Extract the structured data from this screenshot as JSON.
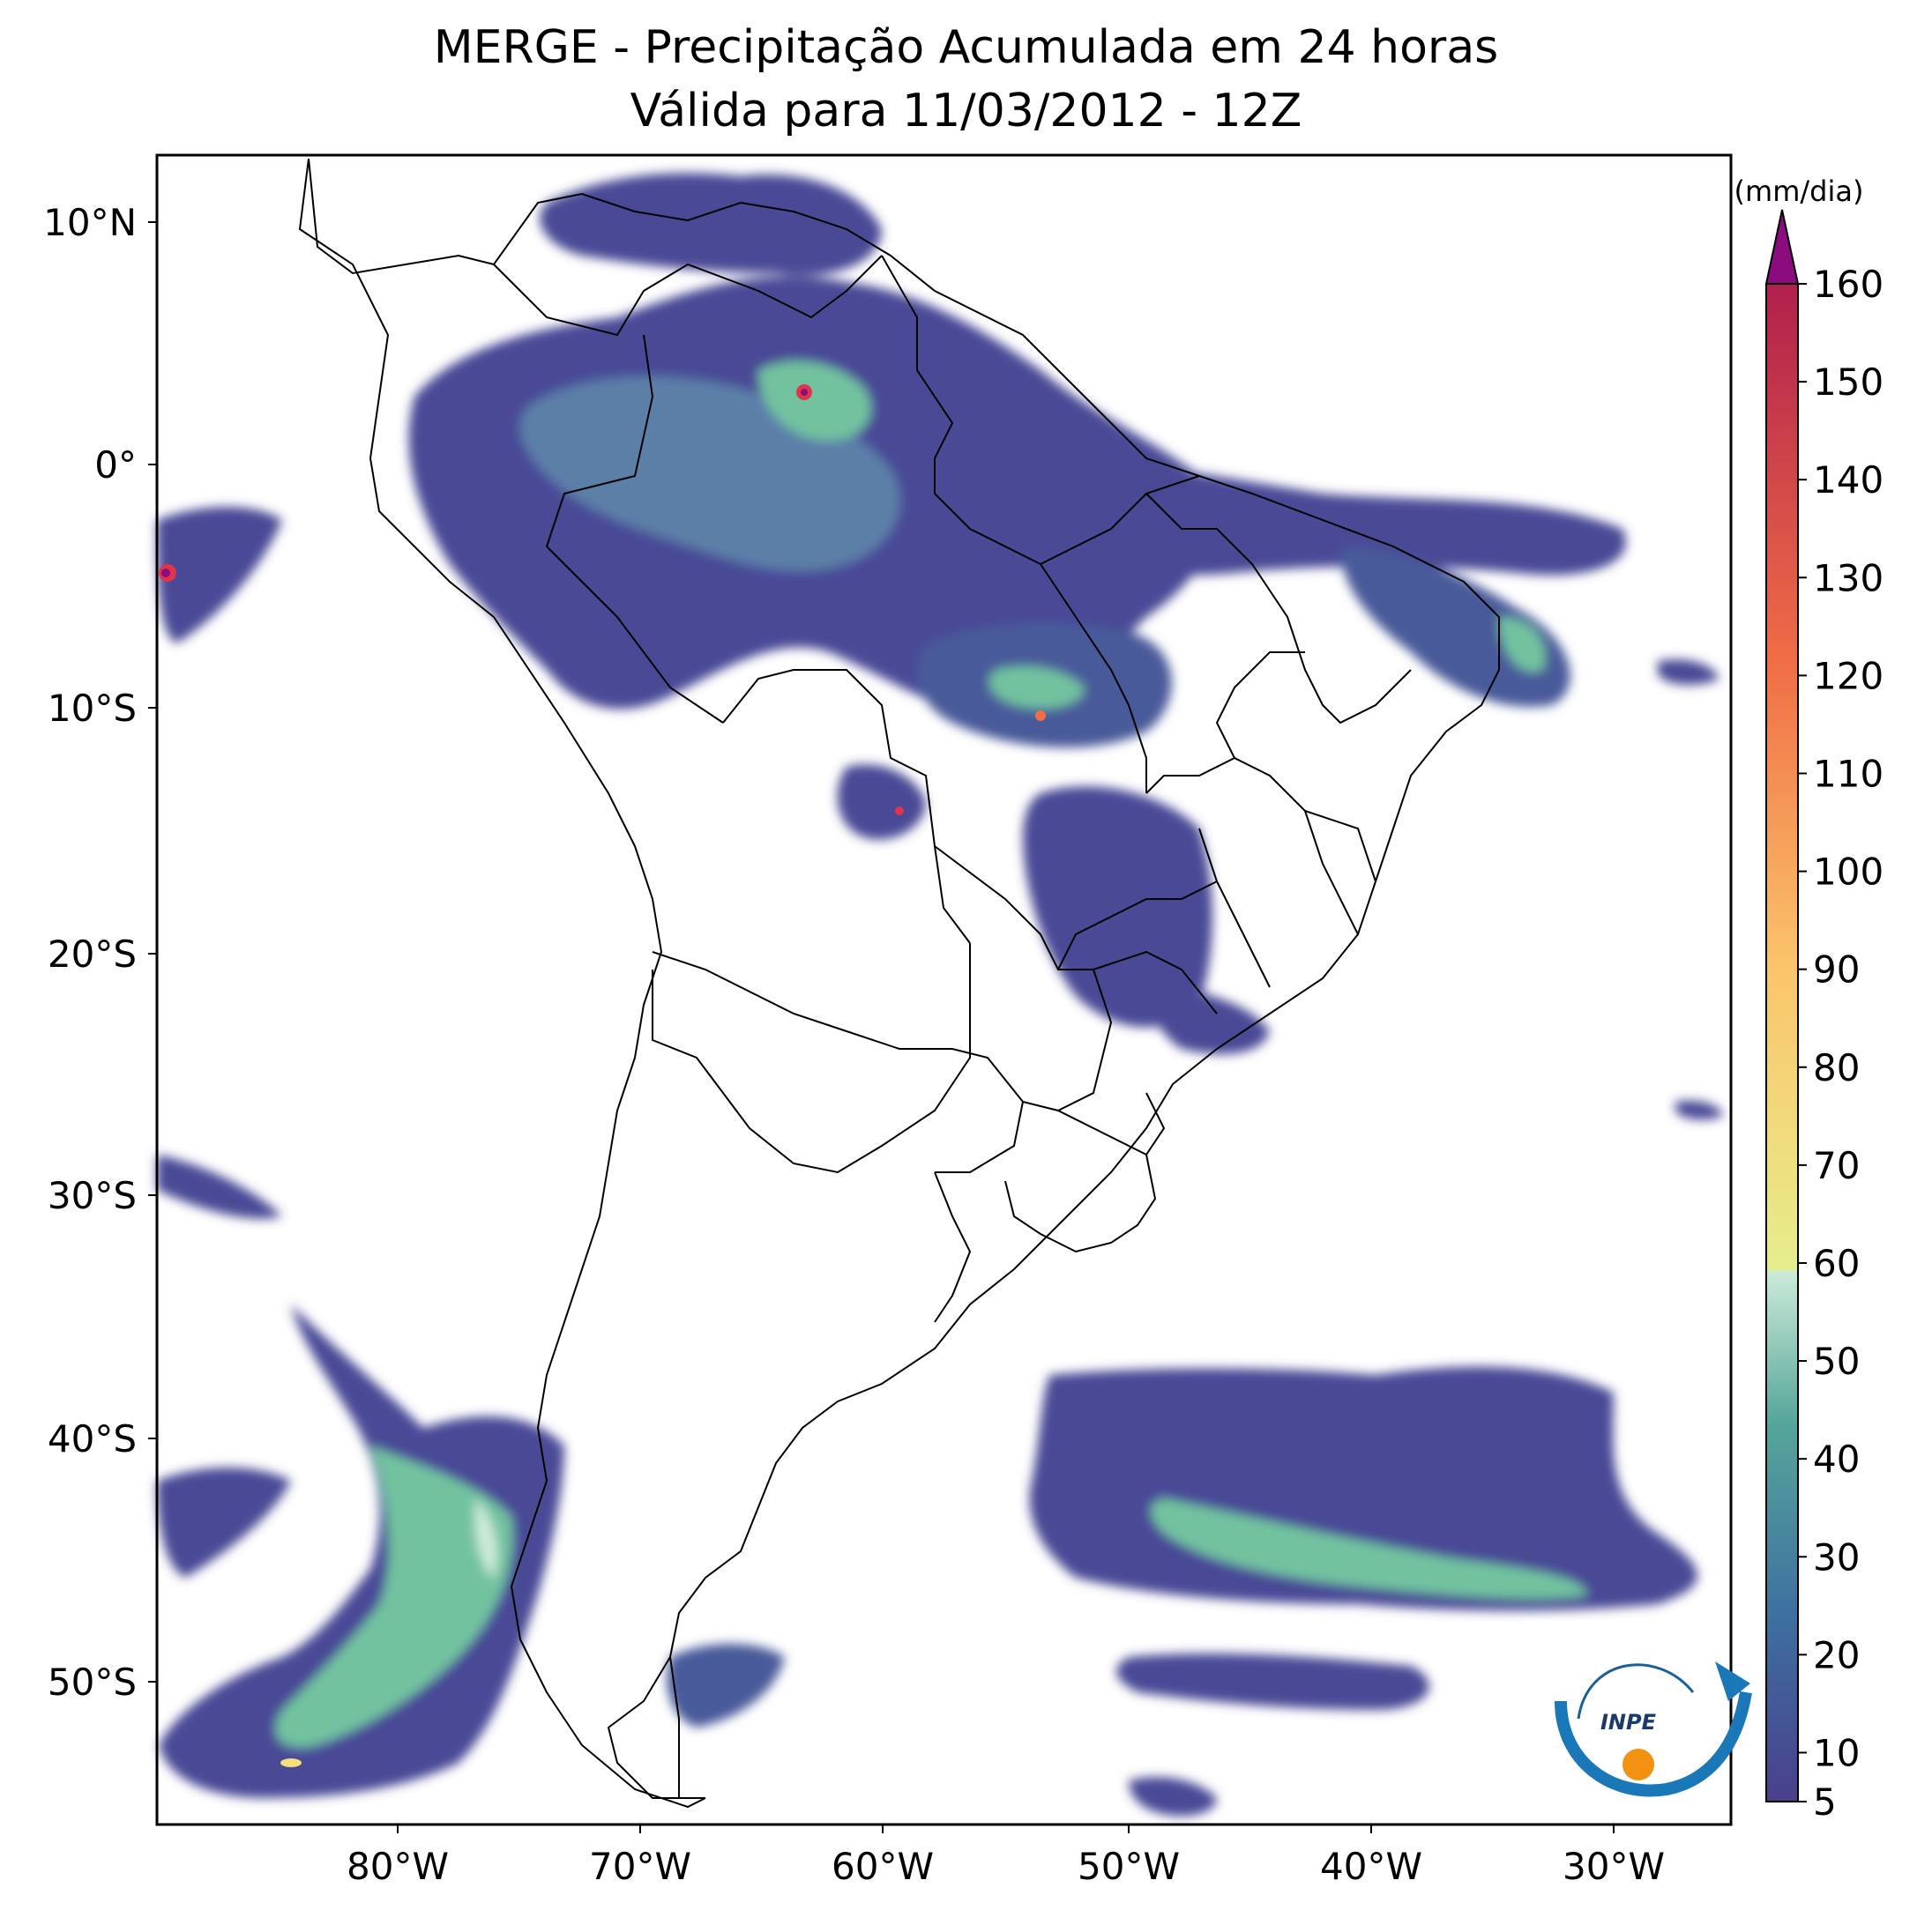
{
  "header": {
    "title_line1": "MERGE - Precipitação Acumulada em 24 horas",
    "title_line2": "Válida para 11/03/2012 - 12Z"
  },
  "axes": {
    "lat_labels": [
      "10°N",
      "0°",
      "10°S",
      "20°S",
      "30°S",
      "40°S",
      "50°S"
    ],
    "lon_labels": [
      "80°W",
      "70°W",
      "60°W",
      "50°W",
      "40°W",
      "30°W"
    ]
  },
  "colorbar": {
    "unit": "(mm/dia)",
    "tick_labels": [
      "5",
      "10",
      "20",
      "30",
      "40",
      "50",
      "60",
      "70",
      "80",
      "90",
      "100",
      "110",
      "120",
      "130",
      "140",
      "150",
      "160"
    ],
    "palette": [
      "#4a3f8c",
      "#4a5a9a",
      "#3d6fa0",
      "#3f8a9e",
      "#56a69a",
      "#72c2a0",
      "#9fd6b4",
      "#cdebd9",
      "#e6ee8c",
      "#f5df7a",
      "#fbc46a",
      "#f99a55",
      "#ef6e46",
      "#dd4a45",
      "#c1304c",
      "#8a0c7e"
    ]
  },
  "logo": {
    "text": "INPE"
  },
  "colors": {
    "frame": "#000000",
    "boundary": "#000000",
    "rain_low": "#4a4a96",
    "rain_mid": "#6fc2a0",
    "rain_high": "#e0344a"
  }
}
